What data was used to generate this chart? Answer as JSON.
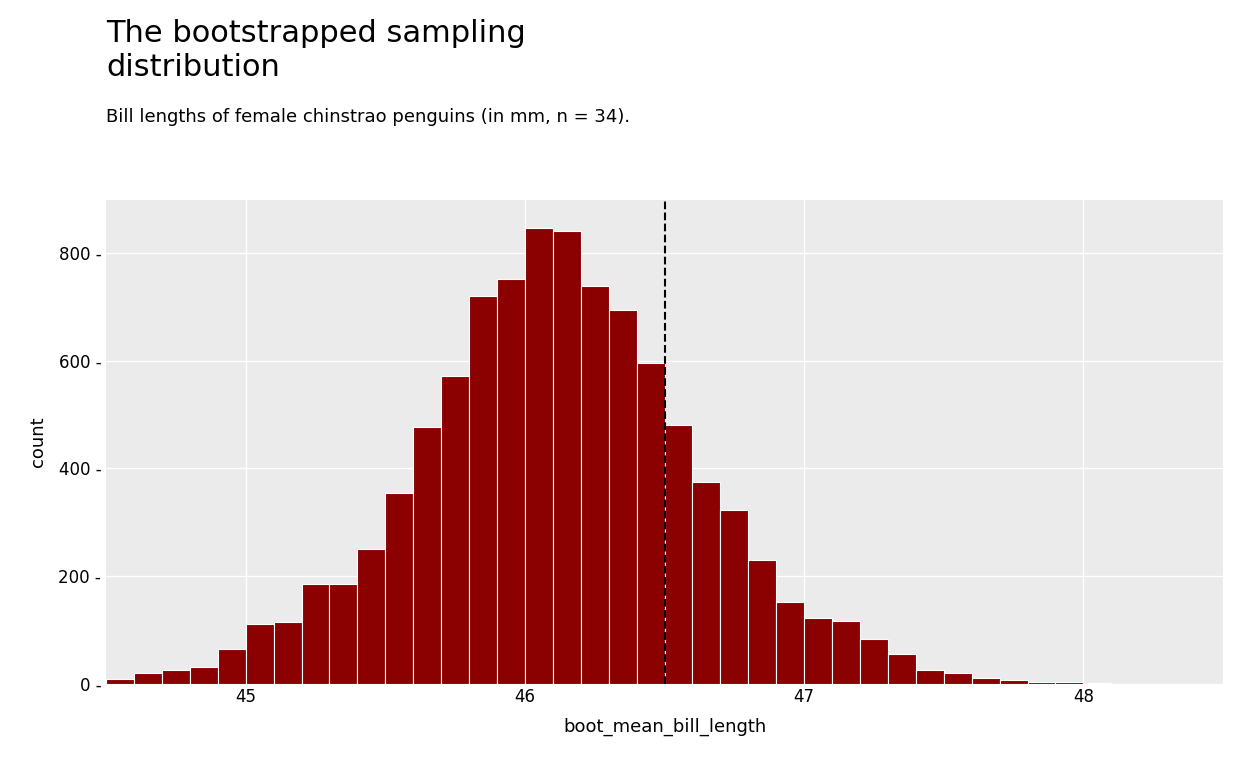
{
  "title": "The bootstrapped sampling\ndistribution",
  "subtitle": "Bill lengths of female chinstrao penguins (in mm, n = 34).",
  "xlabel": "boot_mean_bill_length",
  "ylabel": "count",
  "bar_color": "#8B0000",
  "bar_edge_color": "white",
  "plot_bg_color": "#EBEBEB",
  "fig_bg_color": "#FFFFFF",
  "dashed_line_x": 46.5,
  "dashed_line_color": "black",
  "xlim": [
    44.5,
    48.5
  ],
  "ylim": [
    0,
    900
  ],
  "yticks": [
    0,
    200,
    400,
    600,
    800
  ],
  "xticks": [
    45,
    46,
    47,
    48
  ],
  "bin_width": 0.1,
  "bins_left_edges": [
    44.5,
    44.6,
    44.7,
    44.8,
    44.9,
    45.0,
    45.1,
    45.2,
    45.3,
    45.4,
    45.5,
    45.6,
    45.7,
    45.8,
    45.9,
    46.0,
    46.1,
    46.2,
    46.3,
    46.4,
    46.5,
    46.6,
    46.7,
    46.8,
    46.9,
    47.0,
    47.1,
    47.2,
    47.3,
    47.4,
    47.5,
    47.6,
    47.7,
    47.8,
    47.9,
    48.0,
    48.1,
    48.2,
    48.3
  ],
  "bar_heights": [
    8,
    20,
    25,
    30,
    65,
    110,
    115,
    185,
    185,
    250,
    355,
    478,
    572,
    720,
    752,
    848,
    842,
    740,
    695,
    597,
    480,
    375,
    323,
    230,
    152,
    122,
    116,
    82,
    55,
    26,
    20,
    10,
    6,
    3,
    2,
    1,
    0,
    0,
    0
  ],
  "title_fontsize": 22,
  "subtitle_fontsize": 13,
  "axis_label_fontsize": 13,
  "tick_fontsize": 12,
  "grid_color": "white",
  "grid_linewidth": 1.0
}
